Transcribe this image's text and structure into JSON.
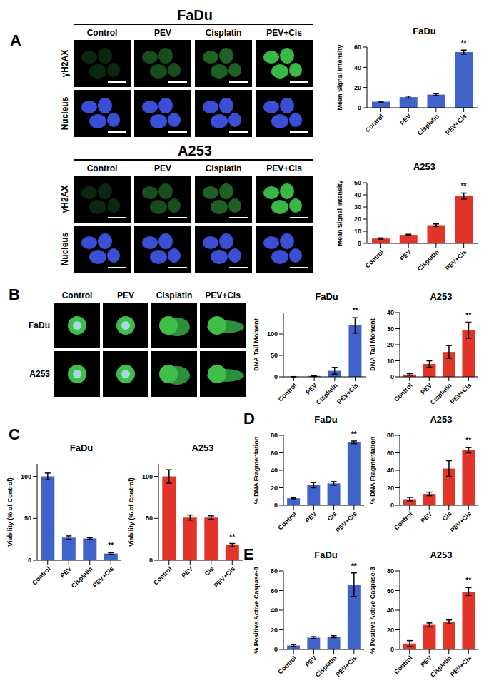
{
  "figure": {
    "panel_labels": [
      "A",
      "B",
      "C",
      "D",
      "E"
    ],
    "microscopy": [
      {
        "title": "FaDu",
        "columns": [
          "Control",
          "PEV",
          "Cisplatin",
          "PEV+Cis"
        ],
        "rows": [
          "γH2AX",
          "Nucleus"
        ]
      },
      {
        "title": "A253",
        "columns": [
          "Control",
          "PEV",
          "Cisplatin",
          "PEV+Cis"
        ],
        "rows": [
          "γH2AX",
          "Nucleus"
        ]
      }
    ],
    "comet": {
      "columns": [
        "Control",
        "PEV",
        "Cisplatin",
        "PEV+Cis"
      ],
      "rows": [
        "FaDu",
        "A253"
      ]
    }
  },
  "chart_data": [
    {
      "type": "bar",
      "title": "FaDu",
      "ylabel": "Mean Signal Intensity",
      "categories": [
        "Control",
        "PEV",
        "Cisplatin",
        "PEV+Cis"
      ],
      "values": [
        6,
        10.5,
        13,
        55
      ],
      "errors": [
        0.5,
        1,
        1,
        2
      ],
      "color": "#3f63c9",
      "ylim": [
        0,
        60
      ],
      "yticks": [
        0,
        20,
        40,
        60
      ],
      "annotations": [
        {
          "category": "PEV+Cis",
          "text": "**"
        }
      ]
    },
    {
      "type": "bar",
      "title": "A253",
      "ylabel": "Mean Signal Intensity",
      "categories": [
        "Control",
        "PEV",
        "Cisplatin",
        "PEV+Cis"
      ],
      "values": [
        4,
        7,
        15,
        39
      ],
      "errors": [
        0.5,
        0.5,
        1,
        2.5
      ],
      "color": "#e3342a",
      "ylim": [
        0,
        50
      ],
      "yticks": [
        0,
        10,
        20,
        30,
        40,
        50
      ],
      "annotations": [
        {
          "category": "PEV+Cis",
          "text": "**"
        }
      ]
    },
    {
      "type": "bar",
      "title": "FaDu",
      "ylabel": "DNA Tail Moment",
      "categories": [
        "Control",
        "PEV",
        "Cisplatin",
        "PEV+Cis"
      ],
      "values": [
        0.3,
        2,
        14,
        120
      ],
      "errors": [
        0.2,
        1,
        8,
        18
      ],
      "color": "#3f63c9",
      "ylim": [
        0,
        150
      ],
      "yticks": [
        0,
        50,
        100
      ],
      "annotations": [
        {
          "category": "PEV+Cis",
          "text": "**"
        }
      ]
    },
    {
      "type": "bar",
      "title": "A253",
      "ylabel": "DNA Tail Moment",
      "categories": [
        "Control",
        "PEV",
        "Cisplatin",
        "PEV+Cis"
      ],
      "values": [
        1.5,
        8,
        15.5,
        29
      ],
      "errors": [
        0.5,
        2,
        4,
        5
      ],
      "color": "#e3342a",
      "ylim": [
        0,
        40
      ],
      "yticks": [
        0,
        10,
        20,
        30,
        40
      ],
      "annotations": [
        {
          "category": "PEV+Cis",
          "text": "**"
        }
      ]
    },
    {
      "type": "bar",
      "title": "FaDu",
      "ylabel": "Viability (% of Control)",
      "categories": [
        "Control",
        "PEV",
        "Cisplatin",
        "PEV+Cis"
      ],
      "values": [
        100,
        27,
        26,
        8
      ],
      "errors": [
        4,
        2,
        1,
        1
      ],
      "color": "#3f63c9",
      "ylim": [
        0,
        115
      ],
      "yticks": [
        0,
        50,
        100
      ],
      "annotations": [
        {
          "category": "PEV+Cis",
          "text": "**"
        }
      ]
    },
    {
      "type": "bar",
      "title": "A253",
      "ylabel": "Viability (% of Control)",
      "categories": [
        "Control",
        "PEV",
        "Cis",
        "PEV+Cis"
      ],
      "values": [
        100,
        51,
        51,
        18
      ],
      "errors": [
        8,
        3,
        2,
        2
      ],
      "color": "#e3342a",
      "ylim": [
        0,
        115
      ],
      "yticks": [
        0,
        50,
        100
      ],
      "annotations": [
        {
          "category": "PEV+Cis",
          "text": "**"
        }
      ]
    },
    {
      "type": "bar",
      "title": "FaDu",
      "ylabel": "% DNA Fragmentation",
      "categories": [
        "Control",
        "PEV",
        "Cis",
        "PEV+Cis"
      ],
      "values": [
        8,
        23,
        25,
        72
      ],
      "errors": [
        0.5,
        3,
        2,
        1.5
      ],
      "color": "#3f63c9",
      "ylim": [
        0,
        80
      ],
      "yticks": [
        0,
        20,
        40,
        60,
        80
      ],
      "annotations": [
        {
          "category": "PEV+Cis",
          "text": "**"
        }
      ]
    },
    {
      "type": "bar",
      "title": "A253",
      "ylabel": "% DNA Fragmentation",
      "categories": [
        "Control",
        "PEV",
        "Cis",
        "PEV+Cis"
      ],
      "values": [
        7,
        13,
        42,
        63
      ],
      "errors": [
        2,
        2,
        9,
        3
      ],
      "color": "#e3342a",
      "ylim": [
        0,
        80
      ],
      "yticks": [
        0,
        20,
        40,
        60,
        80
      ],
      "annotations": [
        {
          "category": "PEV+Cis",
          "text": "**"
        }
      ]
    },
    {
      "type": "bar",
      "title": "FaDu",
      "ylabel": "% Positive Active Caspase-3",
      "categories": [
        "Control",
        "PEV",
        "Cisplatin",
        "PEV+Cis"
      ],
      "values": [
        4,
        12,
        13,
        66
      ],
      "errors": [
        1,
        1,
        1,
        12
      ],
      "color": "#3f63c9",
      "ylim": [
        0,
        80
      ],
      "yticks": [
        0,
        20,
        40,
        60,
        80
      ],
      "annotations": [
        {
          "category": "PEV+Cis",
          "text": "**"
        }
      ]
    },
    {
      "type": "bar",
      "title": "A253",
      "ylabel": "% Positive Active Caspase-3",
      "categories": [
        "Control",
        "PEV",
        "Cisplatin",
        "PEV+Cis"
      ],
      "values": [
        6,
        25,
        28,
        59
      ],
      "errors": [
        3,
        2,
        2,
        4
      ],
      "color": "#e3342a",
      "ylim": [
        0,
        80
      ],
      "yticks": [
        0,
        20,
        40,
        60,
        80
      ],
      "annotations": [
        {
          "category": "PEV+Cis",
          "text": "**"
        }
      ]
    }
  ]
}
